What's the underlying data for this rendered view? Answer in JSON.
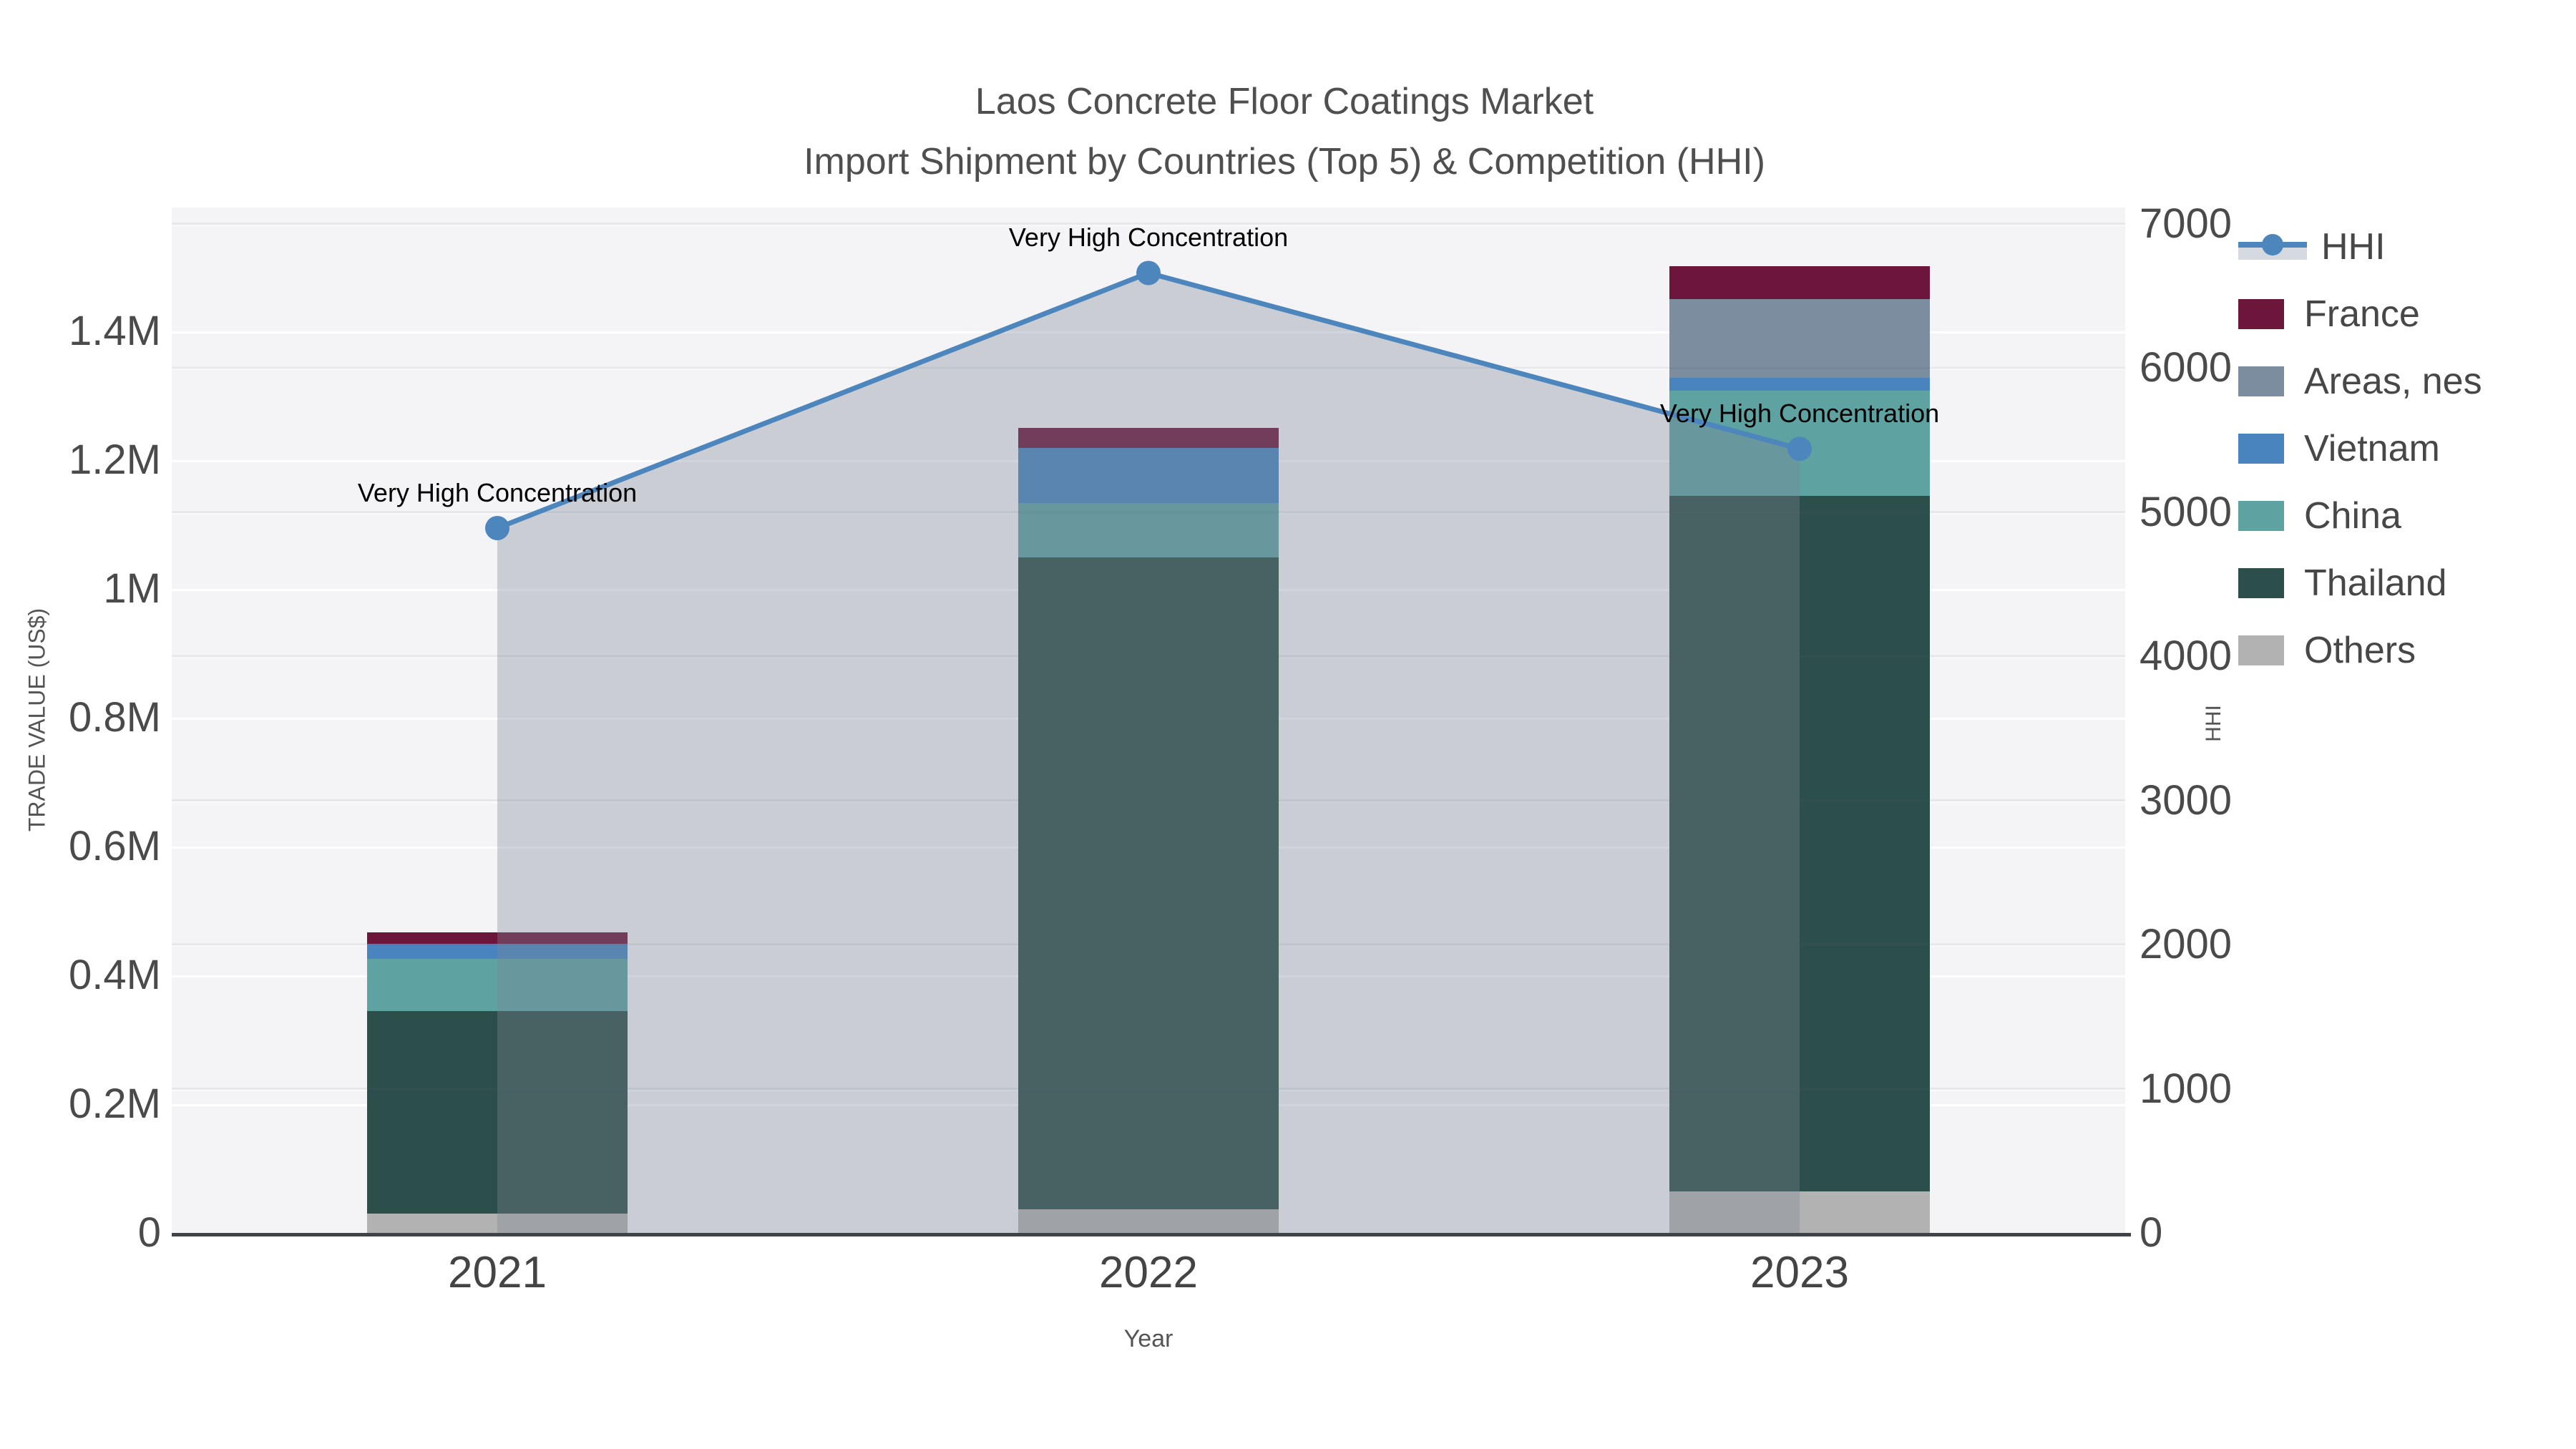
{
  "title": {
    "line1": "Laos Concrete Floor Coatings Market",
    "line2": "Import Shipment by Countries (Top 5) & Competition (HHI)"
  },
  "annotations": {
    "label": "Very High Concentration"
  },
  "axes": {
    "left": {
      "title": "TRADE VALUE (US$)",
      "tick_labels": [
        "0",
        "0.2M",
        "0.4M",
        "0.6M",
        "0.8M",
        "1M",
        "1.2M",
        "1.4M"
      ],
      "tick_values_musd": [
        0,
        0.2,
        0.4,
        0.6,
        0.8,
        1.0,
        1.2,
        1.4
      ]
    },
    "right": {
      "title": "HHI",
      "tick_labels": [
        "0",
        "1000",
        "2000",
        "3000",
        "4000",
        "5000",
        "6000",
        "7000"
      ],
      "tick_values": [
        0,
        1000,
        2000,
        3000,
        4000,
        5000,
        6000,
        7000
      ]
    },
    "x": {
      "title": "Year",
      "categories": [
        "2021",
        "2022",
        "2023"
      ]
    }
  },
  "legend": {
    "items": [
      {
        "label": "HHI",
        "type": "line",
        "color": "#4d85bd"
      },
      {
        "label": "France",
        "type": "bar",
        "color": "#6d163c"
      },
      {
        "label": "Areas, nes",
        "type": "bar",
        "color": "#7c8da0"
      },
      {
        "label": "Vietnam",
        "type": "bar",
        "color": "#4984bf"
      },
      {
        "label": "China",
        "type": "bar",
        "color": "#5fa2a2"
      },
      {
        "label": "Thailand",
        "type": "bar",
        "color": "#2d4f4b"
      },
      {
        "label": "Others",
        "type": "bar",
        "color": "#b2b2b2"
      }
    ]
  },
  "chart_data": {
    "type": "bar",
    "subtype": "stacked-bar-with-line",
    "title": "Laos Concrete Floor Coatings Market — Import Shipment by Countries (Top 5) & Competition (HHI)",
    "categories": [
      "2021",
      "2022",
      "2023"
    ],
    "xlabel": "Year",
    "ylabel": "TRADE VALUE (US$)",
    "y2label": "HHI",
    "ylim_musd": [
      0,
      1.59
    ],
    "y2lim": [
      0,
      7000
    ],
    "grid": true,
    "legend_position": "right",
    "series": [
      {
        "name": "Others",
        "axis": "left",
        "color": "#b2b2b2",
        "values_musd": [
          0.03,
          0.037,
          0.064
        ]
      },
      {
        "name": "Thailand",
        "axis": "left",
        "color": "#2d4f4b",
        "values_musd": [
          0.314,
          1.012,
          1.08
        ]
      },
      {
        "name": "China",
        "axis": "left",
        "color": "#5fa2a2",
        "values_musd": [
          0.082,
          0.084,
          0.164
        ]
      },
      {
        "name": "Vietnam",
        "axis": "left",
        "color": "#4984bf",
        "values_musd": [
          0.023,
          0.086,
          0.02
        ]
      },
      {
        "name": "Areas, nes",
        "axis": "left",
        "color": "#7c8da0",
        "values_musd": [
          0.0,
          0.0,
          0.122
        ]
      },
      {
        "name": "France",
        "axis": "left",
        "color": "#6d163c",
        "values_musd": [
          0.018,
          0.031,
          0.051
        ]
      }
    ],
    "bar_totals_musd": [
      0.467,
      1.25,
      1.501
    ],
    "line_series": {
      "name": "HHI",
      "axis": "right",
      "color": "#4d85bd",
      "fill_color": "rgba(122,134,150,0.35)",
      "values": [
        4890,
        6660,
        5440
      ],
      "point_annotations": [
        "Very High Concentration",
        "Very High Concentration",
        "Very High Concentration"
      ]
    }
  }
}
